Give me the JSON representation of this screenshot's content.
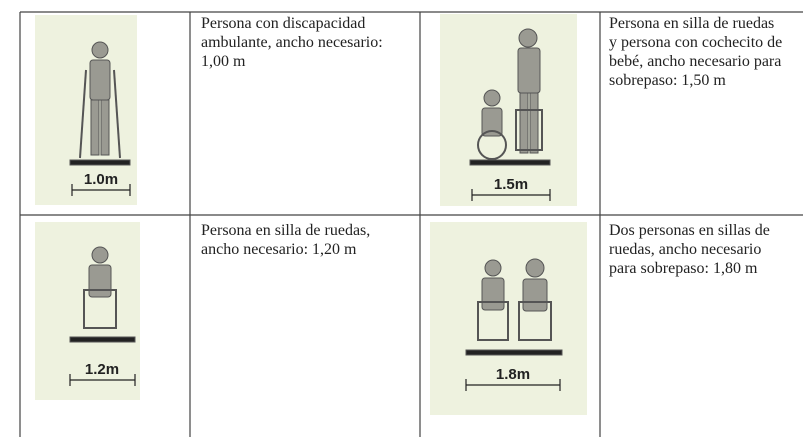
{
  "cells": [
    {
      "measure": "1.0m",
      "lines": [
        "Persona con discapacidad",
        "ambulante, ancho necesario:",
        "1,00 m"
      ]
    },
    {
      "measure": "1.5m",
      "lines": [
        "Persona en silla de ruedas",
        "y persona con cochecito de",
        "bebé, ancho necesario para",
        "sobrepaso: 1,50 m"
      ]
    },
    {
      "measure": "1.2m",
      "lines": [
        "Persona en silla de ruedas,",
        "ancho necesario: 1,20 m"
      ]
    },
    {
      "measure": "1.8m",
      "lines": [
        "Dos personas en sillas de",
        "ruedas, ancho necesario",
        "para sobrepaso: 1,80 m"
      ]
    }
  ]
}
